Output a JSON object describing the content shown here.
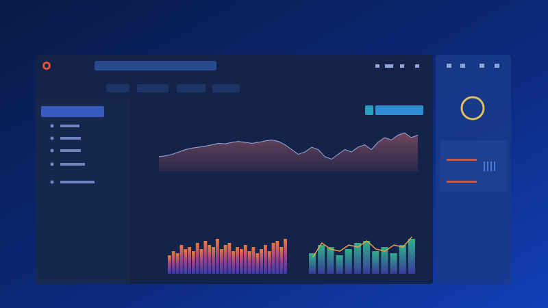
{
  "main_chart": {
    "values": [
      30,
      32,
      35,
      40,
      45,
      48,
      50,
      52,
      55,
      58,
      57,
      60,
      62,
      60,
      58,
      60,
      63,
      65,
      62,
      55,
      45,
      35,
      40,
      50,
      45,
      30,
      25,
      35,
      45,
      40,
      50,
      55,
      45,
      60,
      70,
      65,
      75,
      80,
      70,
      75
    ],
    "ylim": [
      0,
      100
    ]
  },
  "bar_chart_left": {
    "values": [
      45,
      55,
      50,
      70,
      60,
      65,
      55,
      75,
      60,
      80,
      70,
      65,
      85,
      60,
      70,
      75,
      55,
      65,
      60,
      70,
      55,
      65,
      50,
      60,
      70,
      55,
      75,
      80,
      65,
      85
    ],
    "ylim": [
      0,
      100
    ]
  },
  "bar_chart_right": {
    "values": [
      50,
      70,
      65,
      45,
      60,
      75,
      80,
      55,
      65,
      50,
      70,
      85
    ],
    "line": [
      40,
      75,
      60,
      55,
      70,
      65,
      80,
      60,
      55,
      70,
      65,
      90
    ],
    "ylim": [
      0,
      100
    ]
  }
}
